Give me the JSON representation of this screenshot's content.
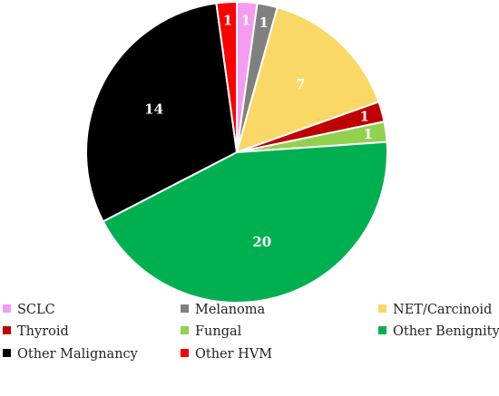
{
  "chart_data": {
    "type": "pie",
    "labels": [
      "SCLC",
      "Melanoma",
      "NET/Carcinoid",
      "Thyroid",
      "Fungal",
      "Other Benignity",
      "Other Malignancy",
      "Other HVM"
    ],
    "values": [
      1,
      1,
      7,
      1,
      1,
      20,
      14,
      1
    ],
    "colors": [
      "#f59cf0",
      "#808080",
      "#fad865",
      "#c00000",
      "#92d050",
      "#00b050",
      "#000000",
      "#ff0000"
    ],
    "label_colors": [
      "#ffffff",
      "#ffffff",
      "#ffffff",
      "#ffffff",
      "#ffffff",
      "#ffffff",
      "#ffffff",
      "#ffffff"
    ],
    "start_angle_deg": 0,
    "direction": "clockwise",
    "legend_position": "bottom"
  }
}
